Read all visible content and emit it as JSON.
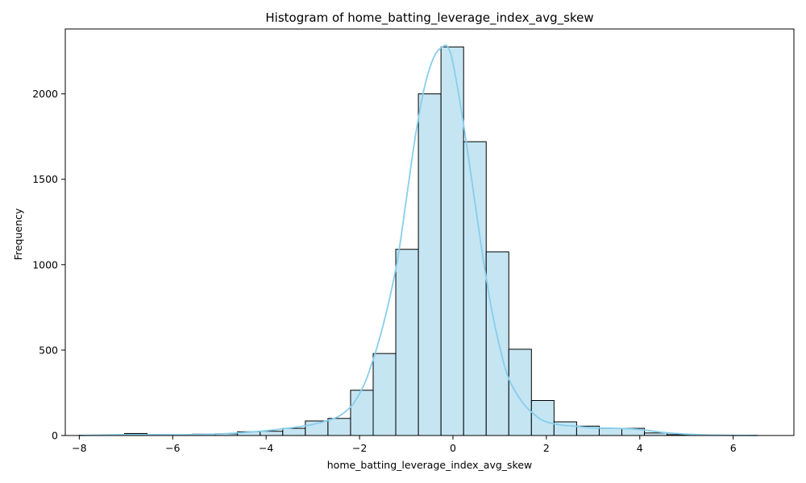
{
  "chart_data": {
    "type": "bar",
    "title": "Histogram of home_batting_leverage_index_avg_skew",
    "xlabel": "home_batting_leverage_index_avg_skew",
    "ylabel": "Frequency",
    "xlim": [
      -8.3,
      7.3
    ],
    "ylim": [
      0,
      2380
    ],
    "x_ticks": [
      -8,
      -6,
      -4,
      -2,
      0,
      2,
      4,
      6
    ],
    "y_ticks": [
      0,
      500,
      1000,
      1500,
      2000
    ],
    "bin_edges": [
      -8.0,
      -7.516,
      -7.032,
      -6.548,
      -6.064,
      -5.58,
      -5.096,
      -4.612,
      -4.128,
      -3.644,
      -3.16,
      -2.676,
      -2.192,
      -1.708,
      -1.224,
      -0.74,
      -0.256,
      0.228,
      0.712,
      1.196,
      1.68,
      2.164,
      2.648,
      3.132,
      3.616,
      4.1,
      4.584,
      5.068,
      5.552,
      6.036,
      6.52
    ],
    "values": [
      2,
      3,
      12,
      5,
      4,
      8,
      10,
      22,
      25,
      42,
      85,
      100,
      265,
      480,
      1090,
      2000,
      2275,
      1720,
      1075,
      505,
      205,
      80,
      55,
      42,
      42,
      15,
      5,
      3,
      2,
      1
    ],
    "kde_x": [
      -8,
      -7,
      -6,
      -5.5,
      -5,
      -4.5,
      -4,
      -3.5,
      -3,
      -2.5,
      -2.2,
      -2,
      -1.8,
      -1.5,
      -1.2,
      -1,
      -0.8,
      -0.6,
      -0.4,
      -0.2,
      -0.1,
      0,
      0.2,
      0.4,
      0.6,
      0.8,
      1,
      1.2,
      1.5,
      1.8,
      2,
      2.3,
      2.6,
      3,
      3.5,
      4,
      4.5,
      5,
      5.5,
      6,
      6.5
    ],
    "kde_y": [
      0,
      5,
      4,
      6,
      9,
      17,
      28,
      44,
      65,
      105,
      165,
      245,
      370,
      640,
      1010,
      1380,
      1760,
      2050,
      2220,
      2280,
      2270,
      2180,
      1870,
      1500,
      1120,
      780,
      520,
      330,
      190,
      110,
      80,
      62,
      55,
      45,
      42,
      35,
      18,
      8,
      3,
      1,
      0
    ],
    "bar_fill": "#c5e5f3",
    "bar_edge": "#000000",
    "kde_color": "#87ceeb",
    "grid": false,
    "legend": "none"
  }
}
